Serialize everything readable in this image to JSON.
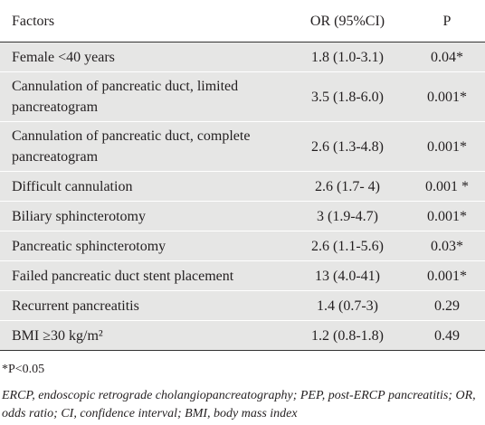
{
  "table": {
    "headers": [
      "Factors",
      "OR (95%CI)",
      "P"
    ],
    "rows": [
      {
        "factor": "Female <40 years",
        "or": "1.8 (1.0-3.1)",
        "p": "0.04*"
      },
      {
        "factor": "Cannulation of pancreatic duct, limited pancreatogram",
        "or": "3.5 (1.8-6.0)",
        "p": "0.001*"
      },
      {
        "factor": "Cannulation of pancreatic duct, complete pancreatogram",
        "or": "2.6 (1.3-4.8)",
        "p": "0.001*"
      },
      {
        "factor": "Difficult cannulation",
        "or": "2.6 (1.7- 4)",
        "p": "0.001 *"
      },
      {
        "factor": "Biliary sphincterotomy",
        "or": "3 (1.9-4.7)",
        "p": "0.001*"
      },
      {
        "factor": "Pancreatic sphincterotomy",
        "or": "2.6 (1.1-5.6)",
        "p": "0.03*"
      },
      {
        "factor": "Failed pancreatic duct stent placement",
        "or": "13 (4.0-41)",
        "p": "0.001*"
      },
      {
        "factor": "Recurrent pancreatitis",
        "or": "1.4 (0.7-3)",
        "p": "0.29"
      },
      {
        "factor": "BMI ≥30 kg/m²",
        "or": "1.2 (0.8-1.8)",
        "p": "0.49"
      }
    ]
  },
  "footnote": "*P<0.05",
  "abbreviations": "ERCP, endoscopic retrograde cholangiopancreatography; PEP, post-ERCP pancreatitis; OR, odds ratio; CI, confidence interval; BMI, body mass index"
}
